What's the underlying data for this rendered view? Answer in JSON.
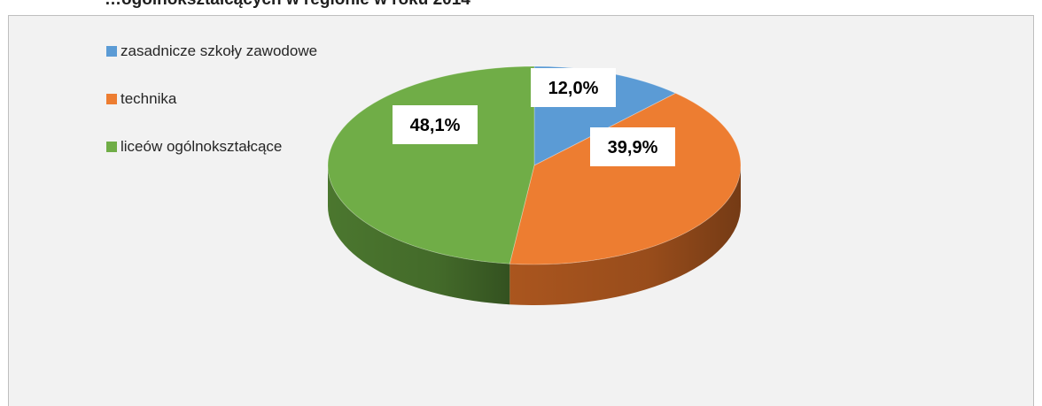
{
  "header": {
    "title": "…ogólnokształcących w regionie w roku 2014"
  },
  "chart_data": {
    "type": "pie",
    "categories": [
      "zasadnicze szkoły zawodowe",
      "technika",
      "liceów ogólnokształcące"
    ],
    "values": [
      12.0,
      39.9,
      48.1
    ],
    "labels": [
      "12,0%",
      "39,9%",
      "48,1%"
    ],
    "colors": [
      "#5b9bd5",
      "#ed7d31",
      "#70ad47"
    ],
    "side_colors": [
      "#3f6f9f",
      "#b35a20",
      "#4f7d31"
    ],
    "legend_position": "top-left",
    "style": "3d",
    "start_angle": "top",
    "direction": "clockwise"
  }
}
